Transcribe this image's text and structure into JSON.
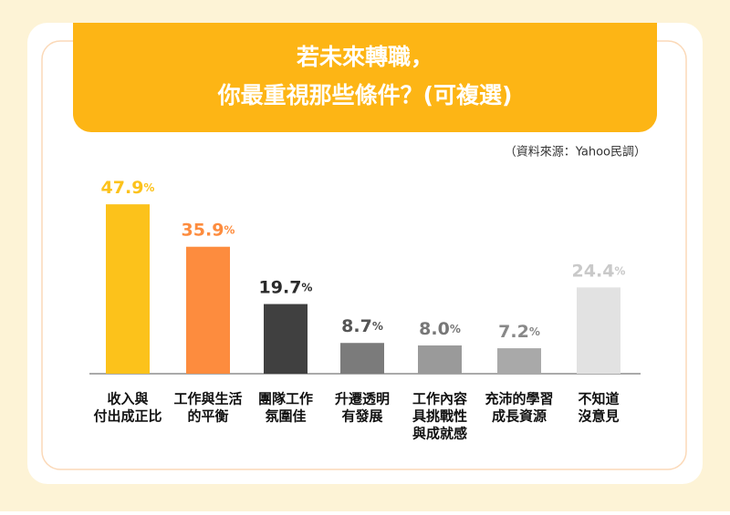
{
  "chart_data": {
    "type": "bar",
    "title": [
      "若未來轉職，",
      "你最重視那些條件？(可複選)"
    ],
    "source": "（資料來源：Yahoo民調）",
    "categories": [
      [
        "收入與",
        "付出成正比"
      ],
      [
        "工作與生活",
        "的平衡"
      ],
      [
        "團隊工作",
        "氛圍佳"
      ],
      [
        "升遷透明",
        "有發展"
      ],
      [
        "工作內容",
        "具挑戰性",
        "與成就感"
      ],
      [
        "充沛的學習",
        "成長資源"
      ],
      [
        "不知道",
        "沒意見"
      ]
    ],
    "values": [
      47.9,
      35.9,
      19.7,
      8.7,
      8.0,
      7.2,
      24.4
    ],
    "value_labels": [
      "47.9%",
      "35.9%",
      "19.7%",
      "8.7%",
      "8.0%",
      "7.2%",
      "24.4%"
    ],
    "colors": [
      "#fcc21b",
      "#fd8c3e",
      "#404040",
      "#7b7b7b",
      "#9a9a9a",
      "#a9a9a9",
      "#e2e2e2"
    ],
    "label_colors": [
      "#fcc21b",
      "#fd8c3e",
      "#2b2b2b",
      "#555555",
      "#777777",
      "#888888",
      "#c9c9c9"
    ]
  }
}
